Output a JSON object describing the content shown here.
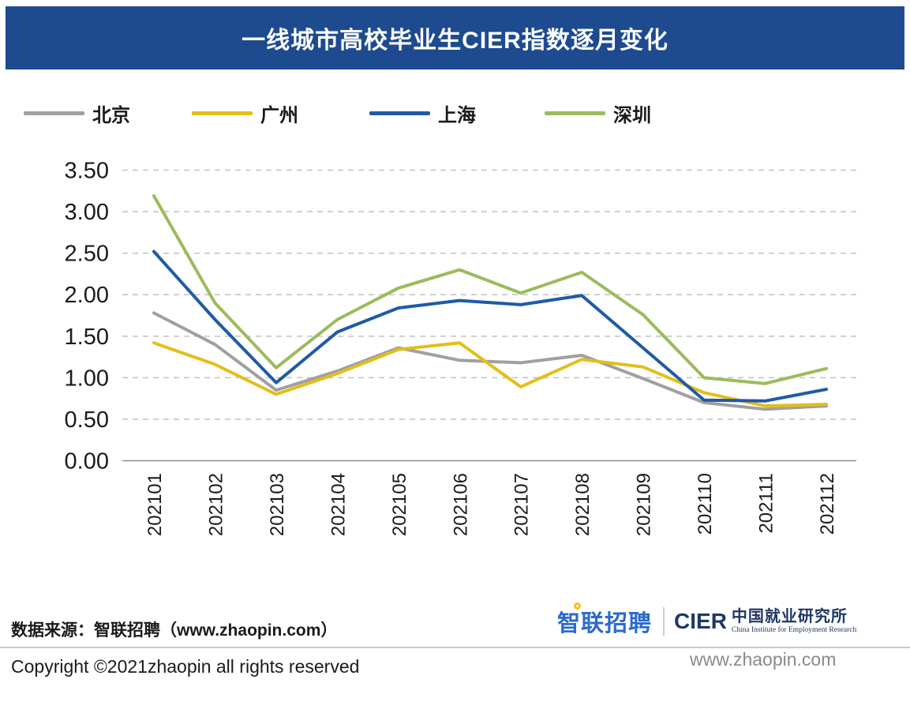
{
  "header": {
    "title": "一线城市高校毕业生CIER指数逐月变化",
    "bg_color": "#1e4b8f"
  },
  "chart_data": {
    "type": "line",
    "title": "一线城市高校毕业生CIER指数逐月变化",
    "categories": [
      "202101",
      "202102",
      "202103",
      "202104",
      "202105",
      "202106",
      "202107",
      "202108",
      "202109",
      "202110",
      "202111",
      "202112"
    ],
    "series": [
      {
        "name": "北京",
        "color": "#a0a0a0",
        "values": [
          1.78,
          1.4,
          0.85,
          1.08,
          1.36,
          1.21,
          1.18,
          1.27,
          0.99,
          0.7,
          0.62,
          0.66
        ]
      },
      {
        "name": "广州",
        "color": "#e3be1a",
        "values": [
          1.42,
          1.16,
          0.8,
          1.05,
          1.34,
          1.42,
          0.89,
          1.22,
          1.13,
          0.82,
          0.66,
          0.68
        ]
      },
      {
        "name": "上海",
        "color": "#1f5aa8",
        "values": [
          2.52,
          1.7,
          0.94,
          1.55,
          1.84,
          1.93,
          1.88,
          1.99,
          1.36,
          0.73,
          0.72,
          0.86
        ]
      },
      {
        "name": "深圳",
        "color": "#9cbb5c",
        "values": [
          3.19,
          1.9,
          1.12,
          1.7,
          2.08,
          2.3,
          2.02,
          2.27,
          1.76,
          1.0,
          0.93,
          1.11
        ]
      }
    ],
    "ylim": [
      0,
      3.5
    ],
    "ytick_step": 0.5,
    "ytick_labels": [
      "0.00",
      "0.50",
      "1.00",
      "1.50",
      "2.00",
      "2.50",
      "3.00",
      "3.50"
    ],
    "grid": "dashed-horizontal",
    "legend_position": "top",
    "xlabel": "",
    "ylabel": ""
  },
  "legend_x_positions": [
    30,
    243,
    468,
    690
  ],
  "footer": {
    "source": "数据来源：智联招聘（www.zhaopin.com）",
    "copyright": "Copyright ©2021zhaopin all rights reserved",
    "website": "www.zhaopin.com"
  },
  "logos": {
    "zhaopin_cn": "智联招聘",
    "cier": "CIER",
    "institute_cn": "中国就业研究所",
    "institute_en": "China Institute for Employment Research"
  },
  "colors": {
    "gridline": "#c5c5c5",
    "axis": "#8c8c8c",
    "divider": "#c9c9c9"
  }
}
